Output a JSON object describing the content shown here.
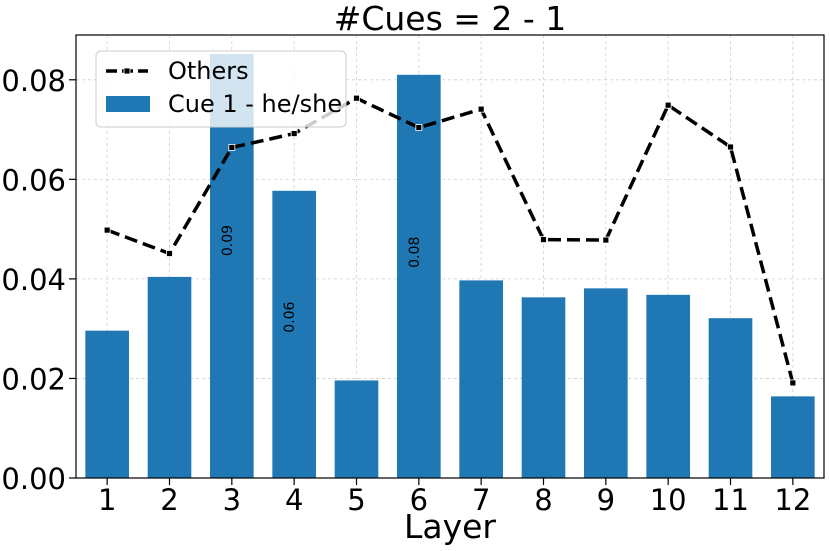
{
  "chart_data": {
    "type": "bar",
    "title": "#Cues = 2 - 1",
    "xlabel": "Layer",
    "ylabel": "",
    "categories": [
      "1",
      "2",
      "3",
      "4",
      "5",
      "6",
      "7",
      "8",
      "9",
      "10",
      "11",
      "12"
    ],
    "ylim": [
      0,
      0.089
    ],
    "yticks": [
      "0.00",
      "0.02",
      "0.04",
      "0.06",
      "0.08"
    ],
    "grid": true,
    "legend_position": "top-left",
    "series": [
      {
        "name": "Cue 1 - he/she",
        "kind": "bar",
        "color": "#1f77b4",
        "values": [
          0.0296,
          0.0404,
          0.0852,
          0.0577,
          0.0196,
          0.081,
          0.0397,
          0.0363,
          0.0381,
          0.0368,
          0.0321,
          0.0164
        ],
        "data_labels": [
          "",
          "",
          "0.09",
          "0.06",
          "",
          "0.08",
          "",
          "",
          "",
          "",
          "",
          ""
        ]
      },
      {
        "name": "Others",
        "kind": "line",
        "color": "#000000",
        "style": "dashed",
        "values": [
          0.0498,
          0.0451,
          0.0664,
          0.0692,
          0.0763,
          0.0704,
          0.0741,
          0.0479,
          0.0478,
          0.0749,
          0.0665,
          0.0191
        ]
      }
    ]
  }
}
